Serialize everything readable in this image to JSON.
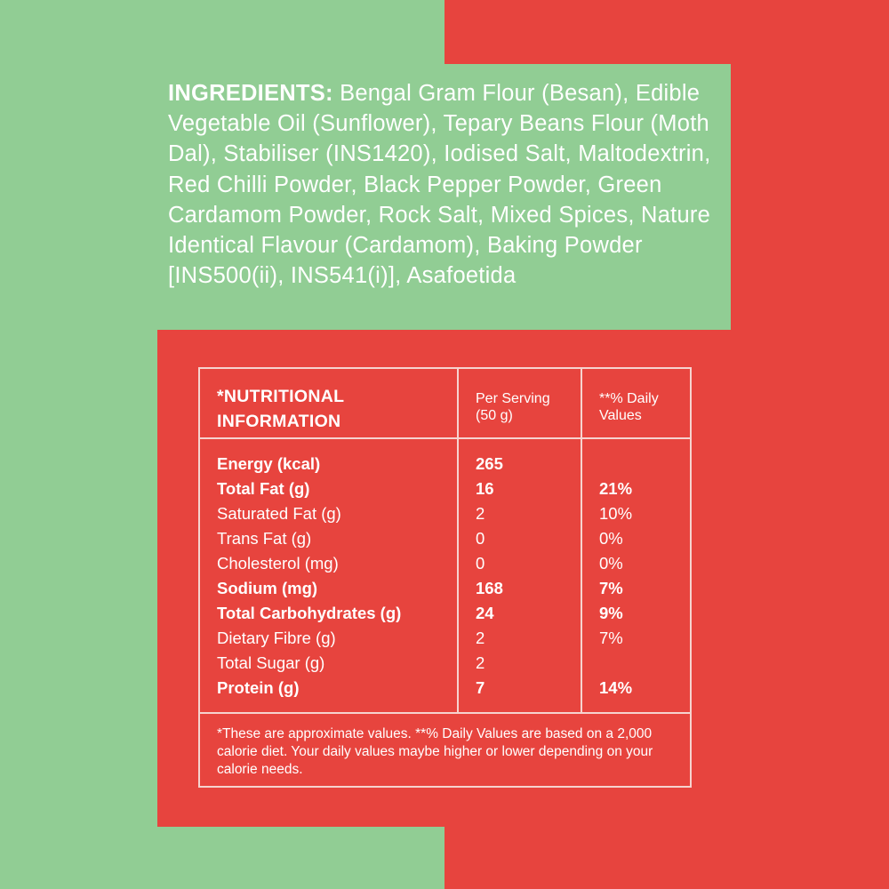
{
  "ingredients": {
    "label": "INGREDIENTS:",
    "text": "Bengal Gram Flour (Besan), Edible Vegetable Oil (Sunflower), Tepary Beans Flour (Moth Dal), Stabiliser (INS1420), Iodised Salt, Maltodextrin, Red Chilli Powder, Black Pepper Powder, Green Cardamom Powder, Rock Salt, Mixed Spices, Nature Identical Flavour (Cardamom), Baking Powder [INS500(ii), INS541(i)], Asafoetida"
  },
  "nutrition": {
    "title_line1": "*NUTRITIONAL",
    "title_line2": "INFORMATION",
    "col2_line1": "Per Serving",
    "col2_line2": "(50 g)",
    "col3_line1": "**% Daily",
    "col3_line2": "Values",
    "rows": [
      {
        "name": "Energy (kcal)",
        "per_serving": "265",
        "daily": "",
        "bold": true
      },
      {
        "name": "Total Fat (g)",
        "per_serving": "16",
        "daily": "21%",
        "bold": true
      },
      {
        "name": "Saturated Fat (g)",
        "per_serving": "2",
        "daily": "10%",
        "bold": false
      },
      {
        "name": "Trans Fat (g)",
        "per_serving": "0",
        "daily": "0%",
        "bold": false
      },
      {
        "name": "Cholesterol (mg)",
        "per_serving": "0",
        "daily": "0%",
        "bold": false
      },
      {
        "name": "Sodium (mg)",
        "per_serving": "168",
        "daily": "7%",
        "bold": true
      },
      {
        "name": "Total Carbohydrates (g)",
        "per_serving": "24",
        "daily": "9%",
        "bold": true
      },
      {
        "name": "Dietary Fibre (g)",
        "per_serving": "2",
        "daily": "7%",
        "bold": false
      },
      {
        "name": "Total Sugar (g)",
        "per_serving": "2",
        "daily": "",
        "bold": false
      },
      {
        "name": "Protein (g)",
        "per_serving": "7",
        "daily": "14%",
        "bold": true
      }
    ],
    "footnote": "*These are approximate values. **% Daily Values are based on a 2,000 calorie diet. Your daily values maybe higher or lower depending on your calorie needs."
  },
  "colors": {
    "green": "#91cd94",
    "red": "#e7443e",
    "line": "#f6d3cf",
    "text": "#ffffff"
  }
}
